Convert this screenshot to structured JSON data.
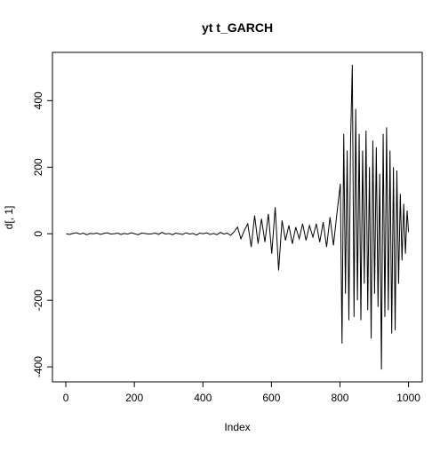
{
  "chart_data": {
    "type": "line",
    "title": "yt t_GARCH",
    "x_label": "Index",
    "y_label": "d[, 1]",
    "color": "#000000",
    "x": [
      1,
      11,
      21,
      31,
      41,
      51,
      61,
      71,
      81,
      91,
      101,
      111,
      121,
      131,
      141,
      151,
      161,
      171,
      181,
      191,
      201,
      211,
      221,
      231,
      241,
      251,
      261,
      271,
      281,
      291,
      301,
      311,
      321,
      331,
      341,
      351,
      361,
      371,
      381,
      391,
      401,
      411,
      421,
      431,
      441,
      451,
      461,
      471,
      481,
      491,
      501,
      511,
      521,
      531,
      541,
      551,
      561,
      571,
      581,
      591,
      601,
      611,
      621,
      631,
      641,
      651,
      661,
      671,
      681,
      691,
      701,
      711,
      721,
      731,
      741,
      751,
      761,
      771,
      781,
      791,
      801,
      806,
      811,
      816,
      821,
      826,
      831,
      836,
      841,
      846,
      851,
      856,
      861,
      866,
      871,
      876,
      881,
      886,
      891,
      896,
      901,
      906,
      911,
      916,
      921,
      926,
      931,
      936,
      941,
      946,
      951,
      956,
      961,
      966,
      971,
      976,
      981,
      986,
      991,
      996,
      1000
    ],
    "values": [
      0,
      -2,
      1,
      3,
      -1,
      2,
      -3,
      1,
      0,
      2,
      -2,
      1,
      3,
      -1,
      0,
      2,
      -2,
      1,
      -1,
      3,
      0,
      -3,
      2,
      1,
      -1,
      0,
      2,
      -2,
      4,
      -1,
      1,
      -3,
      2,
      0,
      -2,
      3,
      -1,
      1,
      -4,
      2,
      0,
      3,
      -2,
      1,
      -3,
      4,
      -1,
      2,
      -5,
      6,
      20,
      -15,
      10,
      30,
      -40,
      55,
      -30,
      45,
      -25,
      60,
      -60,
      80,
      -110,
      40,
      -20,
      25,
      -30,
      20,
      -15,
      30,
      -20,
      25,
      -10,
      30,
      -25,
      35,
      -40,
      50,
      -35,
      60,
      150,
      -330,
      300,
      -180,
      250,
      -260,
      280,
      508,
      -250,
      375,
      -200,
      300,
      -260,
      250,
      -150,
      310,
      -230,
      200,
      -315,
      280,
      -180,
      260,
      -220,
      180,
      -408,
      300,
      -250,
      320,
      -230,
      250,
      -300,
      200,
      -290,
      190,
      -150,
      120,
      -80,
      90,
      -60,
      70,
      5
    ],
    "xlim": [
      -39,
      1040
    ],
    "ylim": [
      -445,
      545
    ],
    "xticks": [
      0,
      200,
      400,
      600,
      800,
      1000
    ],
    "yticks": [
      -400,
      -200,
      0,
      200,
      400
    ]
  }
}
